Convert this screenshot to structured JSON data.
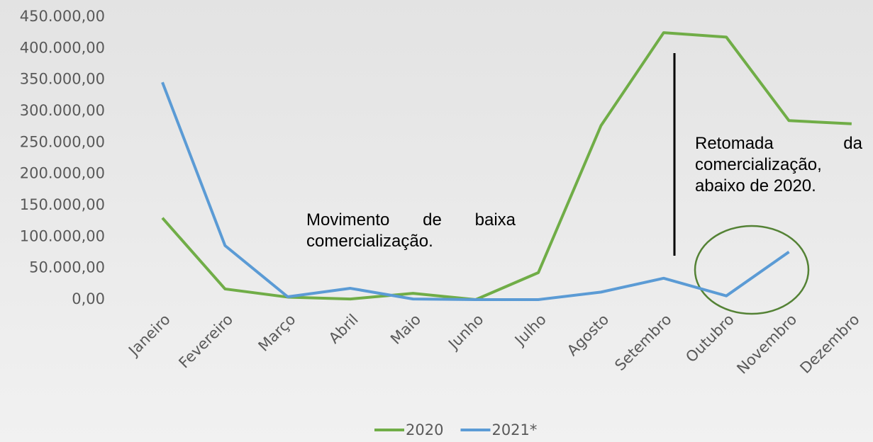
{
  "chart_data": {
    "type": "line",
    "categories": [
      "Janeiro",
      "Fevereiro",
      "Março",
      "Abril",
      "Maio",
      "Junho",
      "Julho",
      "Agosto",
      "Setembro",
      "Outubro",
      "Novembro",
      "Dezembro"
    ],
    "series": [
      {
        "name": "2020",
        "color": "#70ad47",
        "values": [
          130000,
          17000,
          4000,
          1000,
          10000,
          0,
          43000,
          277000,
          425000,
          418000,
          285000,
          280000
        ]
      },
      {
        "name": "2021*",
        "color": "#5b9bd5",
        "values": [
          346000,
          86000,
          4500,
          18000,
          1000,
          0,
          0,
          12000,
          34000,
          6000,
          76000,
          null
        ]
      }
    ],
    "ylim": [
      0,
      450000
    ],
    "yticks": [
      {
        "value": 0,
        "label": "0,00"
      },
      {
        "value": 50000,
        "label": "50.000,00"
      },
      {
        "value": 100000,
        "label": "100.000,00"
      },
      {
        "value": 150000,
        "label": "150.000,00"
      },
      {
        "value": 200000,
        "label": "200.000,00"
      },
      {
        "value": 250000,
        "label": "250.000,00"
      },
      {
        "value": 300000,
        "label": "300.000,00"
      },
      {
        "value": 350000,
        "label": "350.000,00"
      },
      {
        "value": 400000,
        "label": "400.000,00"
      },
      {
        "value": 450000,
        "label": "450.000,00"
      }
    ],
    "grid": false,
    "legend": "bottom",
    "annotations": [
      {
        "lines": [
          "Movimento de baixa",
          "comercialização."
        ]
      },
      {
        "lines": [
          "Retomada da",
          "comercialização,",
          "abaixo de 2020."
        ]
      }
    ]
  }
}
